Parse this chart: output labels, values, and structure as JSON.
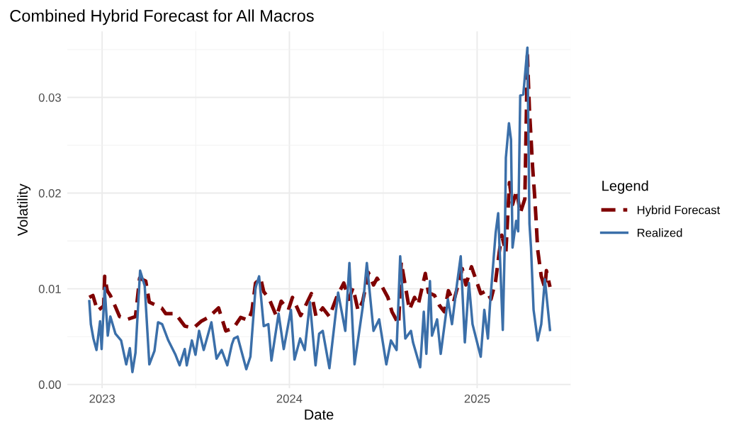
{
  "chart_data": {
    "type": "line",
    "title": "Combined Hybrid Forecast for All Macros",
    "xlabel": "Date",
    "ylabel": "Volatility",
    "legend_title": "Legend",
    "legend": "right",
    "grid": true,
    "xlim": [
      "2022-10-25",
      "2025-07-02"
    ],
    "ylim": [
      -0.0004,
      0.0369
    ],
    "xticks": [
      {
        "value": "2023-01-01",
        "label": "2023"
      },
      {
        "value": "2024-01-01",
        "label": "2024"
      },
      {
        "value": "2025-01-01",
        "label": "2025"
      }
    ],
    "yticks": [
      {
        "value": 0,
        "label": "0.00"
      },
      {
        "value": 0.01,
        "label": "0.01"
      },
      {
        "value": 0.02,
        "label": "0.02"
      },
      {
        "value": 0.03,
        "label": "0.03"
      }
    ],
    "series": [
      {
        "name": "Hybrid Forecast",
        "color": "#7f0000",
        "line_style": "dashed",
        "x": [
          "2022-12-07",
          "2022-12-14",
          "2022-12-23",
          "2023-01-04",
          "2023-01-06",
          "2023-01-11",
          "2023-01-17",
          "2023-01-27",
          "2023-02-04",
          "2023-02-19",
          "2023-03-07",
          "2023-03-15",
          "2023-03-27",
          "2023-04-03",
          "2023-04-27",
          "2023-05-05",
          "2023-05-24",
          "2023-06-11",
          "2023-06-28",
          "2023-07-13",
          "2023-07-27",
          "2023-08-16",
          "2023-08-30",
          "2023-09-14",
          "2023-09-28",
          "2023-10-13",
          "2023-10-20",
          "2023-10-27",
          "2023-11-06",
          "2023-11-12",
          "2023-11-23",
          "2023-12-07",
          "2023-12-16",
          "2023-12-30",
          "2024-01-07",
          "2024-01-23",
          "2024-02-13",
          "2024-02-22",
          "2024-03-06",
          "2024-03-19",
          "2024-04-02",
          "2024-04-16",
          "2024-04-26",
          "2024-05-04",
          "2024-05-14",
          "2024-05-23",
          "2024-06-03",
          "2024-06-13",
          "2024-06-20",
          "2024-06-28",
          "2024-07-11",
          "2024-07-19",
          "2024-08-01",
          "2024-08-06",
          "2024-08-22",
          "2024-09-01",
          "2024-09-08",
          "2024-09-22",
          "2024-09-28",
          "2024-10-10",
          "2024-10-19",
          "2024-10-29",
          "2024-11-06",
          "2024-11-16",
          "2024-12-03",
          "2024-12-10",
          "2024-12-21",
          "2025-01-01",
          "2025-01-08",
          "2025-01-19",
          "2025-01-28",
          "2025-02-06",
          "2025-02-13",
          "2025-02-18",
          "2025-02-26",
          "2025-03-05",
          "2025-03-11",
          "2025-03-19",
          "2025-03-26",
          "2025-04-04",
          "2025-04-09",
          "2025-04-13",
          "2025-04-16",
          "2025-04-19",
          "2025-04-23",
          "2025-04-26",
          "2025-04-29",
          "2025-05-06",
          "2025-05-13",
          "2025-05-16",
          "2025-05-23"
        ],
        "values": [
          0.0091,
          0.0093,
          0.0077,
          0.0082,
          0.0113,
          0.0098,
          0.0093,
          0.0081,
          0.0071,
          0.0068,
          0.0071,
          0.0111,
          0.0108,
          0.0086,
          0.008,
          0.0074,
          0.0074,
          0.0061,
          0.0059,
          0.0066,
          0.007,
          0.008,
          0.0056,
          0.0059,
          0.007,
          0.0067,
          0.0077,
          0.0106,
          0.0111,
          0.0097,
          0.0089,
          0.0071,
          0.0087,
          0.0078,
          0.0091,
          0.0072,
          0.0095,
          0.0071,
          0.008,
          0.0071,
          0.0091,
          0.0106,
          0.0089,
          0.0101,
          0.0077,
          0.0087,
          0.0117,
          0.0104,
          0.0111,
          0.0104,
          0.0091,
          0.0076,
          0.0063,
          0.0128,
          0.0078,
          0.0091,
          0.0083,
          0.0116,
          0.0096,
          0.0093,
          0.0083,
          0.0076,
          0.0098,
          0.0086,
          0.0121,
          0.0104,
          0.0123,
          0.0106,
          0.0095,
          0.0098,
          0.0089,
          0.0108,
          0.0138,
          0.0156,
          0.0138,
          0.0211,
          0.0188,
          0.0203,
          0.0179,
          0.0194,
          0.0344,
          0.0286,
          0.0258,
          0.0228,
          0.0198,
          0.0171,
          0.0141,
          0.0113,
          0.0101,
          0.0119,
          0.0102
        ]
      },
      {
        "name": "Realized",
        "color": "#3b6fa9",
        "line_style": "solid",
        "x": [
          "2022-12-07",
          "2022-12-10",
          "2022-12-15",
          "2022-12-21",
          "2022-12-28",
          "2022-12-31",
          "2023-01-06",
          "2023-01-12",
          "2023-01-17",
          "2023-01-27",
          "2023-02-07",
          "2023-02-17",
          "2023-02-24",
          "2023-03-01",
          "2023-03-07",
          "2023-03-16",
          "2023-03-25",
          "2023-04-03",
          "2023-04-13",
          "2023-04-20",
          "2023-04-28",
          "2023-05-10",
          "2023-05-24",
          "2023-06-01",
          "2023-06-11",
          "2023-06-15",
          "2023-06-25",
          "2023-07-02",
          "2023-07-09",
          "2023-07-18",
          "2023-08-02",
          "2023-08-12",
          "2023-08-22",
          "2023-09-02",
          "2023-09-11",
          "2023-09-15",
          "2023-09-22",
          "2023-10-09",
          "2023-10-17",
          "2023-10-27",
          "2023-11-03",
          "2023-11-12",
          "2023-11-21",
          "2023-11-27",
          "2023-12-11",
          "2023-12-21",
          "2024-01-04",
          "2024-01-11",
          "2024-01-22",
          "2024-01-31",
          "2024-02-10",
          "2024-02-21",
          "2024-02-28",
          "2024-03-06",
          "2024-03-19",
          "2024-04-05",
          "2024-04-19",
          "2024-04-27",
          "2024-05-07",
          "2024-05-23",
          "2024-05-31",
          "2024-06-13",
          "2024-06-24",
          "2024-07-08",
          "2024-07-17",
          "2024-07-28",
          "2024-08-04",
          "2024-08-14",
          "2024-08-25",
          "2024-08-29",
          "2024-09-12",
          "2024-09-19",
          "2024-09-24",
          "2024-10-01",
          "2024-10-05",
          "2024-10-15",
          "2024-10-22",
          "2024-11-05",
          "2024-11-13",
          "2024-11-23",
          "2024-11-30",
          "2024-12-08",
          "2024-12-16",
          "2024-12-23",
          "2025-01-08",
          "2025-01-15",
          "2025-01-22",
          "2025-01-26",
          "2025-02-06",
          "2025-02-11",
          "2025-02-15",
          "2025-02-20",
          "2025-02-24",
          "2025-02-26",
          "2025-03-04",
          "2025-03-08",
          "2025-03-11",
          "2025-03-18",
          "2025-03-22",
          "2025-03-26",
          "2025-04-01",
          "2025-04-09",
          "2025-04-13",
          "2025-04-16",
          "2025-04-21",
          "2025-04-29",
          "2025-05-06",
          "2025-05-13",
          "2025-05-23"
        ],
        "values": [
          0.0087,
          0.0063,
          0.0048,
          0.0036,
          0.0066,
          0.0037,
          0.0101,
          0.0051,
          0.0071,
          0.0053,
          0.0046,
          0.0021,
          0.0038,
          0.0013,
          0.0033,
          0.0119,
          0.0103,
          0.0021,
          0.0035,
          0.0065,
          0.0063,
          0.0046,
          0.0031,
          0.002,
          0.0037,
          0.002,
          0.0046,
          0.0031,
          0.0056,
          0.0036,
          0.0065,
          0.0027,
          0.0036,
          0.002,
          0.0042,
          0.0048,
          0.005,
          0.0016,
          0.0029,
          0.0101,
          0.0113,
          0.0061,
          0.0063,
          0.0025,
          0.0074,
          0.0037,
          0.0078,
          0.0026,
          0.0048,
          0.0036,
          0.0086,
          0.002,
          0.0053,
          0.0056,
          0.0017,
          0.0096,
          0.0056,
          0.0127,
          0.0021,
          0.0081,
          0.0127,
          0.0056,
          0.0068,
          0.0021,
          0.0046,
          0.0036,
          0.0134,
          0.0048,
          0.0056,
          0.0044,
          0.0018,
          0.0076,
          0.0032,
          0.0108,
          0.0051,
          0.0068,
          0.0032,
          0.0089,
          0.0063,
          0.0106,
          0.0134,
          0.0044,
          0.0106,
          0.0063,
          0.0029,
          0.0078,
          0.0048,
          0.0083,
          0.0158,
          0.0179,
          0.0126,
          0.0057,
          0.015,
          0.0237,
          0.0273,
          0.0256,
          0.0143,
          0.0171,
          0.016,
          0.0302,
          0.0303,
          0.0352,
          0.0168,
          0.0143,
          0.0078,
          0.0046,
          0.0063,
          0.011,
          0.0057
        ]
      }
    ]
  }
}
